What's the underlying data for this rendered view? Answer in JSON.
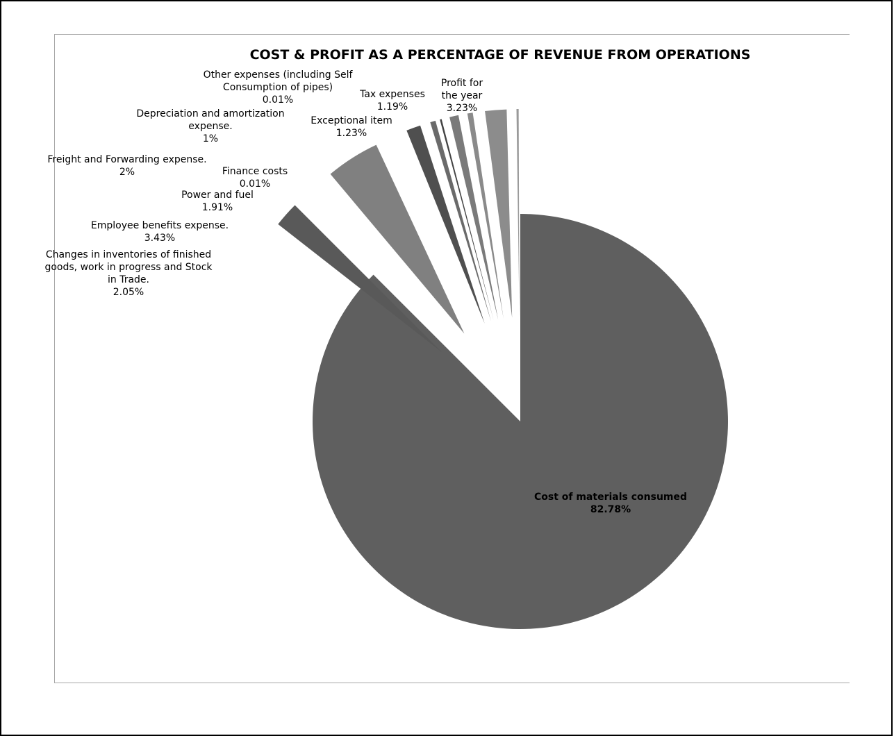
{
  "chart_data": {
    "type": "pie",
    "title": "COST & PROFIT AS A PERCENTAGE OF REVENUE FROM OPERATIONS",
    "legend": "none",
    "slices": [
      {
        "label": [
          "Cost of materials consumed"
        ],
        "pct_text": "82.78%",
        "value": 82.78,
        "color": "#5f5f5f"
      },
      {
        "label": [
          "Changes in inventories of finished",
          "goods, work in progress and Stock",
          "in Trade."
        ],
        "pct_text": "2.05%",
        "value": 2.05,
        "color": "#ffffff"
      },
      {
        "label": [
          "Employee benefits expense."
        ],
        "pct_text": "3.43%",
        "value": 3.43,
        "color": "#ffffff"
      },
      {
        "label": [
          "Power and fuel"
        ],
        "pct_text": "1.91%",
        "value": 1.91,
        "color": "#595959"
      },
      {
        "label": [
          "Finance costs"
        ],
        "pct_text": "0.01%",
        "value": 0.01,
        "color": "#ffffff"
      },
      {
        "label": [
          "Freight and Forwarding expense."
        ],
        "pct_text": "2%",
        "value": 2.0,
        "color": "#ffffff"
      },
      {
        "label": [
          "Depreciation and amortization",
          "expense."
        ],
        "pct_text": "1%",
        "value": 1.0,
        "color": "#ffffff"
      },
      {
        "label": [
          "Other expenses (including Self",
          "Consumption of  pipes)"
        ],
        "pct_text": "0.01%",
        "value": 0.01,
        "color": "#ffffff"
      },
      {
        "label": [
          "Exceptional item"
        ],
        "pct_text": "1.23%",
        "value": 1.23,
        "color": "#ffffff"
      },
      {
        "label": [
          "Tax expenses"
        ],
        "pct_text": "1.19%",
        "value": 1.19,
        "color": "#ffffff"
      },
      {
        "label": [
          "Profit for",
          "the year"
        ],
        "pct_text": "3.23%",
        "value": 3.23,
        "color": "#ffffff"
      }
    ]
  }
}
